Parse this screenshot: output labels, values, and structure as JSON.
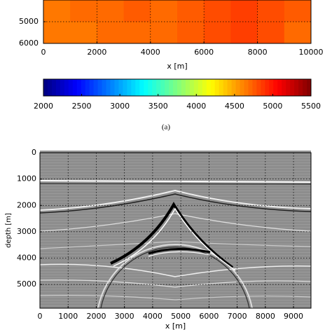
{
  "chart_data": [
    {
      "type": "heatmap",
      "x_label": "x [m]",
      "xlim": [
        0,
        10000
      ],
      "xticks": [
        0,
        2000,
        4000,
        6000,
        8000,
        10000
      ],
      "ylim": [
        6000,
        4000
      ],
      "yticks": [
        5000,
        6000
      ],
      "grid": true,
      "values": [
        [
          4650,
          4700,
          4700,
          4750,
          4700,
          4750,
          4800,
          4850,
          4800,
          4750
        ],
        [
          4650,
          4650,
          4700,
          4700,
          4700,
          4750,
          4800,
          4850,
          4800,
          4700
        ]
      ],
      "clim": [
        2000,
        5500
      ],
      "colorbar_ticks": [
        2000,
        2500,
        3000,
        3500,
        4000,
        4500,
        5000,
        5500
      ],
      "caption": "(a)"
    },
    {
      "type": "image",
      "x_label": "x [m]",
      "y_label": "depth [m]",
      "xlim": [
        0,
        9620
      ],
      "xticks": [
        0,
        1000,
        2000,
        3000,
        4000,
        5000,
        6000,
        7000,
        8000,
        9000
      ],
      "ylim": [
        5900,
        0
      ],
      "yticks": [
        0,
        1000,
        2000,
        3000,
        4000,
        5000
      ],
      "grid": true
    }
  ]
}
